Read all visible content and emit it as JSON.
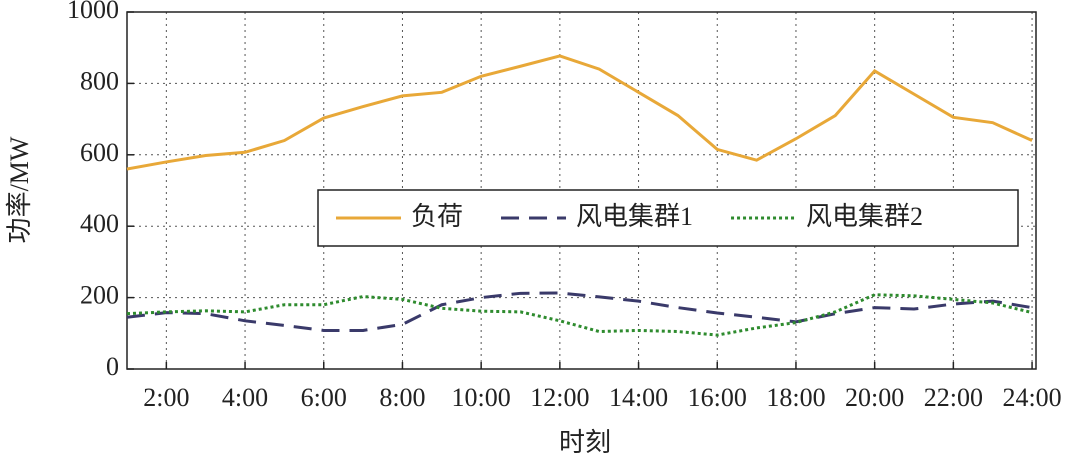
{
  "chart_data": {
    "type": "line",
    "x_label": "时刻",
    "y_label": "功率/MW",
    "x": [
      1,
      2,
      3,
      4,
      5,
      6,
      7,
      8,
      9,
      10,
      11,
      12,
      13,
      14,
      15,
      16,
      17,
      18,
      19,
      20,
      21,
      22,
      23,
      24
    ],
    "series": [
      {
        "name": "负荷",
        "color": "#e8a838",
        "style": "solid",
        "values": [
          560,
          580,
          598,
          607,
          640,
          703,
          735,
          765,
          775,
          820,
          848,
          877,
          840,
          775,
          710,
          615,
          585,
          645,
          710,
          835,
          770,
          705,
          690,
          640
        ]
      },
      {
        "name": "风电集群1",
        "color": "#3a3a6a",
        "style": "dashed",
        "values": [
          145,
          158,
          155,
          135,
          122,
          108,
          108,
          125,
          180,
          200,
          212,
          213,
          202,
          190,
          172,
          157,
          145,
          132,
          155,
          172,
          168,
          182,
          190,
          172
        ]
      },
      {
        "name": "风电集群2",
        "color": "#2e8b2e",
        "style": "dotted",
        "values": [
          155,
          160,
          163,
          160,
          180,
          180,
          203,
          195,
          170,
          162,
          160,
          135,
          105,
          108,
          105,
          95,
          115,
          130,
          160,
          208,
          205,
          195,
          185,
          158
        ]
      }
    ],
    "xlim": [
      1,
      24.1
    ],
    "ylim": [
      0,
      1000
    ],
    "xticks": [
      {
        "value": 2,
        "label": "2:00"
      },
      {
        "value": 4,
        "label": "4:00"
      },
      {
        "value": 6,
        "label": "6:00"
      },
      {
        "value": 8,
        "label": "8:00"
      },
      {
        "value": 10,
        "label": "10:00"
      },
      {
        "value": 12,
        "label": "12:00"
      },
      {
        "value": 14,
        "label": "14:00"
      },
      {
        "value": 16,
        "label": "16:00"
      },
      {
        "value": 18,
        "label": "18:00"
      },
      {
        "value": 20,
        "label": "20:00"
      },
      {
        "value": 22,
        "label": "22:00"
      },
      {
        "value": 24,
        "label": "24:00"
      }
    ],
    "yticks": [
      0,
      200,
      400,
      600,
      800,
      1000
    ],
    "grid": true
  }
}
